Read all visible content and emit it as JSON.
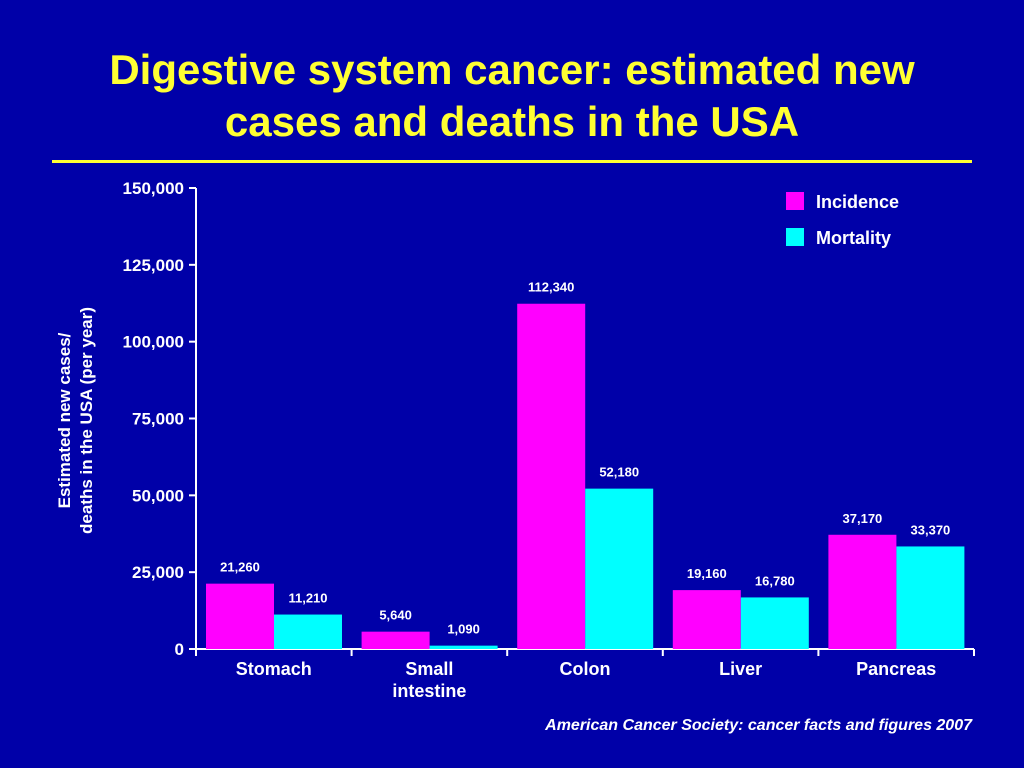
{
  "slide": {
    "title_line1": "Digestive system cancer: estimated new",
    "title_line2": "cases and deaths in the USA",
    "source": "American Cancer Society: cancer facts and figures 2007"
  },
  "colors": {
    "background": "#0000a8",
    "title": "#ffff33",
    "incidence": "#ff00ff",
    "mortality": "#00ffff",
    "text": "#ffffff"
  },
  "chart_data": {
    "type": "bar",
    "categories": [
      [
        "Stomach"
      ],
      [
        "Small",
        "intestine"
      ],
      [
        "Colon"
      ],
      [
        "Liver"
      ],
      [
        "Pancreas"
      ]
    ],
    "series": [
      {
        "name": "Incidence",
        "values": [
          21260,
          5640,
          112340,
          19160,
          37170
        ],
        "labels": [
          "21,260",
          "5,640",
          "112,340",
          "19,160",
          "37,170"
        ]
      },
      {
        "name": "Mortality",
        "values": [
          11210,
          1090,
          52180,
          16780,
          33370
        ],
        "labels": [
          "11,210",
          "1,090",
          "52,180",
          "16,780",
          "33,370"
        ]
      }
    ],
    "ylabel": [
      "Estimated new cases/",
      "deaths in the USA (per year)"
    ],
    "ylim": [
      0,
      150000
    ],
    "yticks": [
      0,
      25000,
      50000,
      75000,
      100000,
      125000,
      150000
    ],
    "ytick_labels": [
      "0",
      "25,000",
      "50,000",
      "75,000",
      "100,000",
      "125,000",
      "150,000"
    ],
    "legend_position": "top-right",
    "grid": false
  }
}
